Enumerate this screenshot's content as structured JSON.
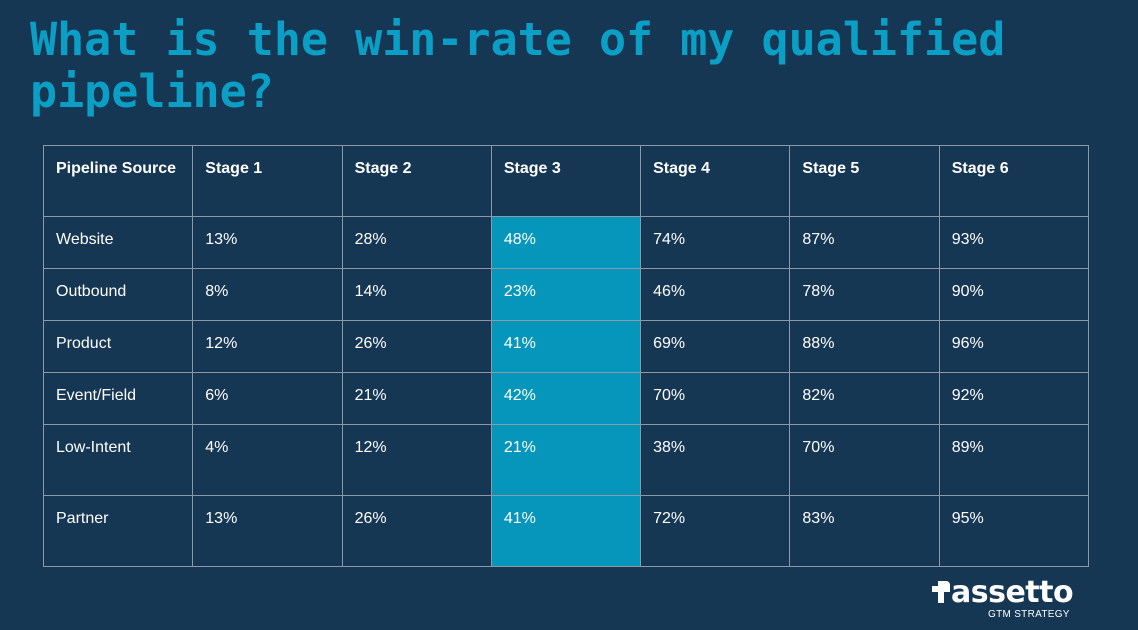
{
  "title": "What is the win-rate of my qualified pipeline?",
  "chart_data": {
    "type": "table",
    "columns": [
      "Pipeline Source",
      "Stage 1",
      "Stage 2",
      "Stage 3",
      "Stage 4",
      "Stage 5",
      "Stage 6"
    ],
    "highlight_column": "Stage 3",
    "rows": [
      {
        "source": "Website",
        "values": [
          "13%",
          "28%",
          "48%",
          "74%",
          "87%",
          "93%"
        ]
      },
      {
        "source": "Outbound",
        "values": [
          "8%",
          "14%",
          "23%",
          "46%",
          "78%",
          "90%"
        ]
      },
      {
        "source": "Product",
        "values": [
          "12%",
          "26%",
          "41%",
          "69%",
          "88%",
          "96%"
        ]
      },
      {
        "source": "Event/Field",
        "values": [
          "6%",
          "21%",
          "42%",
          "70%",
          "82%",
          "92%"
        ]
      },
      {
        "source": "Low-Intent",
        "values": [
          "4%",
          "12%",
          "21%",
          "38%",
          "70%",
          "89%"
        ]
      },
      {
        "source": "Partner",
        "values": [
          "13%",
          "26%",
          "41%",
          "72%",
          "83%",
          "95%"
        ]
      }
    ]
  },
  "logo": {
    "name": "Passetto",
    "name_rest": "assetto",
    "tagline": "GTM STRATEGY",
    "icon": "plus-icon"
  },
  "colors": {
    "background": "#153754",
    "title": "#0b9fc6",
    "highlight": "#0696bc",
    "grid": "#8c9aa8",
    "text": "#ffffff"
  }
}
